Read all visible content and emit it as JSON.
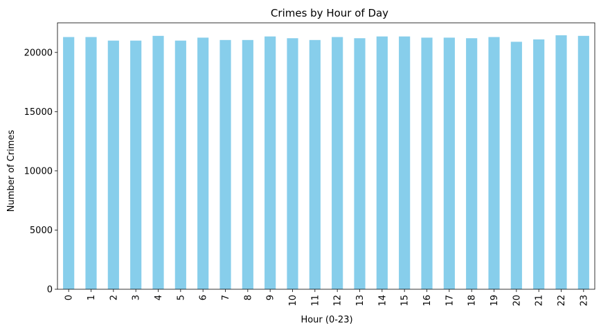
{
  "chart_data": {
    "type": "bar",
    "title": "Crimes by Hour of Day",
    "xlabel": "Hour (0-23)",
    "ylabel": "Number of Crimes",
    "categories": [
      "0",
      "1",
      "2",
      "3",
      "4",
      "5",
      "6",
      "7",
      "8",
      "9",
      "10",
      "11",
      "12",
      "13",
      "14",
      "15",
      "16",
      "17",
      "18",
      "19",
      "20",
      "21",
      "22",
      "23"
    ],
    "values": [
      21300,
      21300,
      21000,
      21000,
      21400,
      21000,
      21250,
      21050,
      21050,
      21350,
      21200,
      21050,
      21300,
      21200,
      21350,
      21350,
      21250,
      21250,
      21200,
      21300,
      20900,
      21100,
      21450,
      21400
    ],
    "ylim": [
      0,
      22500
    ],
    "yticks": [
      0,
      5000,
      10000,
      15000,
      20000
    ],
    "bar_color": "#87ceeb",
    "grid": false,
    "legend": "none"
  }
}
